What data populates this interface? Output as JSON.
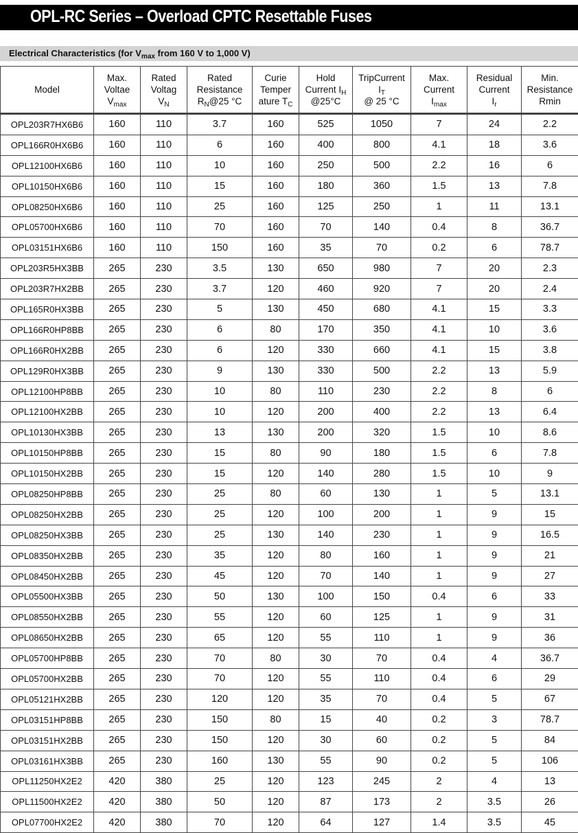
{
  "title": "OPL-RC Series – Overload CPTC Resettable Fuses",
  "section": {
    "prefix": "Electrical Characteristics (for V",
    "sub": "max",
    "suffix": " from 160 V to 1,000 V)"
  },
  "table": {
    "headers": [
      [
        {
          "t": "Model"
        }
      ],
      [
        {
          "t": "Max."
        },
        {
          "t": "Voltae"
        },
        {
          "t": "V",
          "sub": "max"
        }
      ],
      [
        {
          "t": "Rated"
        },
        {
          "t": "Voltag"
        },
        {
          "t": "V",
          "sub": "N"
        }
      ],
      [
        {
          "t": "Rated"
        },
        {
          "t": "Resistance"
        },
        {
          "t": "R",
          "sub": "N",
          "after": "@25 °C"
        }
      ],
      [
        {
          "t": "Curie"
        },
        {
          "t": "Temper"
        },
        {
          "t": "ature T",
          "sub": "C"
        }
      ],
      [
        {
          "t": "Hold"
        },
        {
          "t": "Current I",
          "sub": "H"
        },
        {
          "t": "@25°C"
        }
      ],
      [
        {
          "t": "TripCurrent"
        },
        {
          "t": "I",
          "sub": "T"
        },
        {
          "t": "@ 25 °C"
        }
      ],
      [
        {
          "t": "Max."
        },
        {
          "t": "Current"
        },
        {
          "t": "I",
          "sub": "max"
        }
      ],
      [
        {
          "t": "Residual"
        },
        {
          "t": "Current"
        },
        {
          "t": "I",
          "sub": "r"
        }
      ],
      [
        {
          "t": "Min."
        },
        {
          "t": "Resistance"
        },
        {
          "t": "Rmin"
        }
      ]
    ],
    "rows": [
      [
        "OPL203R7HX6B6",
        "160",
        "110",
        "3.7",
        "160",
        "525",
        "1050",
        "7",
        "24",
        "2.2"
      ],
      [
        "OPL166R0HX6B6",
        "160",
        "110",
        "6",
        "160",
        "400",
        "800",
        "4.1",
        "18",
        "3.6"
      ],
      [
        "OPL12100HX6B6",
        "160",
        "110",
        "10",
        "160",
        "250",
        "500",
        "2.2",
        "16",
        "6"
      ],
      [
        "OPL10150HX6B6",
        "160",
        "110",
        "15",
        "160",
        "180",
        "360",
        "1.5",
        "13",
        "7.8"
      ],
      [
        "OPL08250HX6B6",
        "160",
        "110",
        "25",
        "160",
        "125",
        "250",
        "1",
        "11",
        "13.1"
      ],
      [
        "OPL05700HX6B6",
        "160",
        "110",
        "70",
        "160",
        "70",
        "140",
        "0.4",
        "8",
        "36.7"
      ],
      [
        "OPL03151HX6B6",
        "160",
        "110",
        "150",
        "160",
        "35",
        "70",
        "0.2",
        "6",
        "78.7"
      ],
      [
        "OPL203R5HX3BB",
        "265",
        "230",
        "3.5",
        "130",
        "650",
        "980",
        "7",
        "20",
        "2.3"
      ],
      [
        "OPL203R7HX2BB",
        "265",
        "230",
        "3.7",
        "120",
        "460",
        "920",
        "7",
        "20",
        "2.4"
      ],
      [
        "OPL165R0HX3BB",
        "265",
        "230",
        "5",
        "130",
        "450",
        "680",
        "4.1",
        "15",
        "3.3"
      ],
      [
        "OPL166R0HP8BB",
        "265",
        "230",
        "6",
        "80",
        "170",
        "350",
        "4.1",
        "10",
        "3.6"
      ],
      [
        "OPL166R0HX2BB",
        "265",
        "230",
        "6",
        "120",
        "330",
        "660",
        "4.1",
        "15",
        "3.8"
      ],
      [
        "OPL129R0HX3BB",
        "265",
        "230",
        "9",
        "130",
        "330",
        "500",
        "2.2",
        "13",
        "5.9"
      ],
      [
        "OPL12100HP8BB",
        "265",
        "230",
        "10",
        "80",
        "110",
        "230",
        "2.2",
        "8",
        "6"
      ],
      [
        "OPL12100HX2BB",
        "265",
        "230",
        "10",
        "120",
        "200",
        "400",
        "2.2",
        "13",
        "6.4"
      ],
      [
        "OPL10130HX3BB",
        "265",
        "230",
        "13",
        "130",
        "200",
        "320",
        "1.5",
        "10",
        "8.6"
      ],
      [
        "OPL10150HP8BB",
        "265",
        "230",
        "15",
        "80",
        "90",
        "180",
        "1.5",
        "6",
        "7.8"
      ],
      [
        "OPL10150HX2BB",
        "265",
        "230",
        "15",
        "120",
        "140",
        "280",
        "1.5",
        "10",
        "9"
      ],
      [
        "OPL08250HP8BB",
        "265",
        "230",
        "25",
        "80",
        "60",
        "130",
        "1",
        "5",
        "13.1"
      ],
      [
        "OPL08250HX2BB",
        "265",
        "230",
        "25",
        "120",
        "100",
        "200",
        "1",
        "9",
        "15"
      ],
      [
        "OPL08250HX3BB",
        "265",
        "230",
        "25",
        "130",
        "140",
        "230",
        "1",
        "9",
        "16.5"
      ],
      [
        "OPL08350HX2BB",
        "265",
        "230",
        "35",
        "120",
        "80",
        "160",
        "1",
        "9",
        "21"
      ],
      [
        "OPL08450HX2BB",
        "265",
        "230",
        "45",
        "120",
        "70",
        "140",
        "1",
        "9",
        "27"
      ],
      [
        "OPL05500HX3BB",
        "265",
        "230",
        "50",
        "130",
        "100",
        "150",
        "0.4",
        "6",
        "33"
      ],
      [
        "OPL08550HX2BB",
        "265",
        "230",
        "55",
        "120",
        "60",
        "125",
        "1",
        "9",
        "31"
      ],
      [
        "OPL08650HX2BB",
        "265",
        "230",
        "65",
        "120",
        "55",
        "110",
        "1",
        "9",
        "36"
      ],
      [
        "OPL05700HP8BB",
        "265",
        "230",
        "70",
        "80",
        "30",
        "70",
        "0.4",
        "4",
        "36.7"
      ],
      [
        "OPL05700HX2BB",
        "265",
        "230",
        "70",
        "120",
        "55",
        "110",
        "0.4",
        "6",
        "29"
      ],
      [
        "OPL05121HX2BB",
        "265",
        "230",
        "120",
        "120",
        "35",
        "70",
        "0.4",
        "5",
        "67"
      ],
      [
        "OPL03151HP8BB",
        "265",
        "230",
        "150",
        "80",
        "15",
        "40",
        "0.2",
        "3",
        "78.7"
      ],
      [
        "OPL03151HX2BB",
        "265",
        "230",
        "150",
        "120",
        "30",
        "60",
        "0.2",
        "5",
        "84"
      ],
      [
        "OPL03161HX3BB",
        "265",
        "230",
        "160",
        "130",
        "55",
        "90",
        "0.2",
        "5",
        "106"
      ],
      [
        "OPL11250HX2E2",
        "420",
        "380",
        "25",
        "120",
        "123",
        "245",
        "2",
        "4",
        "13"
      ],
      [
        "OPL11500HX2E2",
        "420",
        "380",
        "50",
        "120",
        "87",
        "173",
        "2",
        "3.5",
        "26"
      ],
      [
        "OPL07700HX2E2",
        "420",
        "380",
        "70",
        "120",
        "64",
        "127",
        "1.4",
        "3.5",
        "45"
      ]
    ]
  }
}
